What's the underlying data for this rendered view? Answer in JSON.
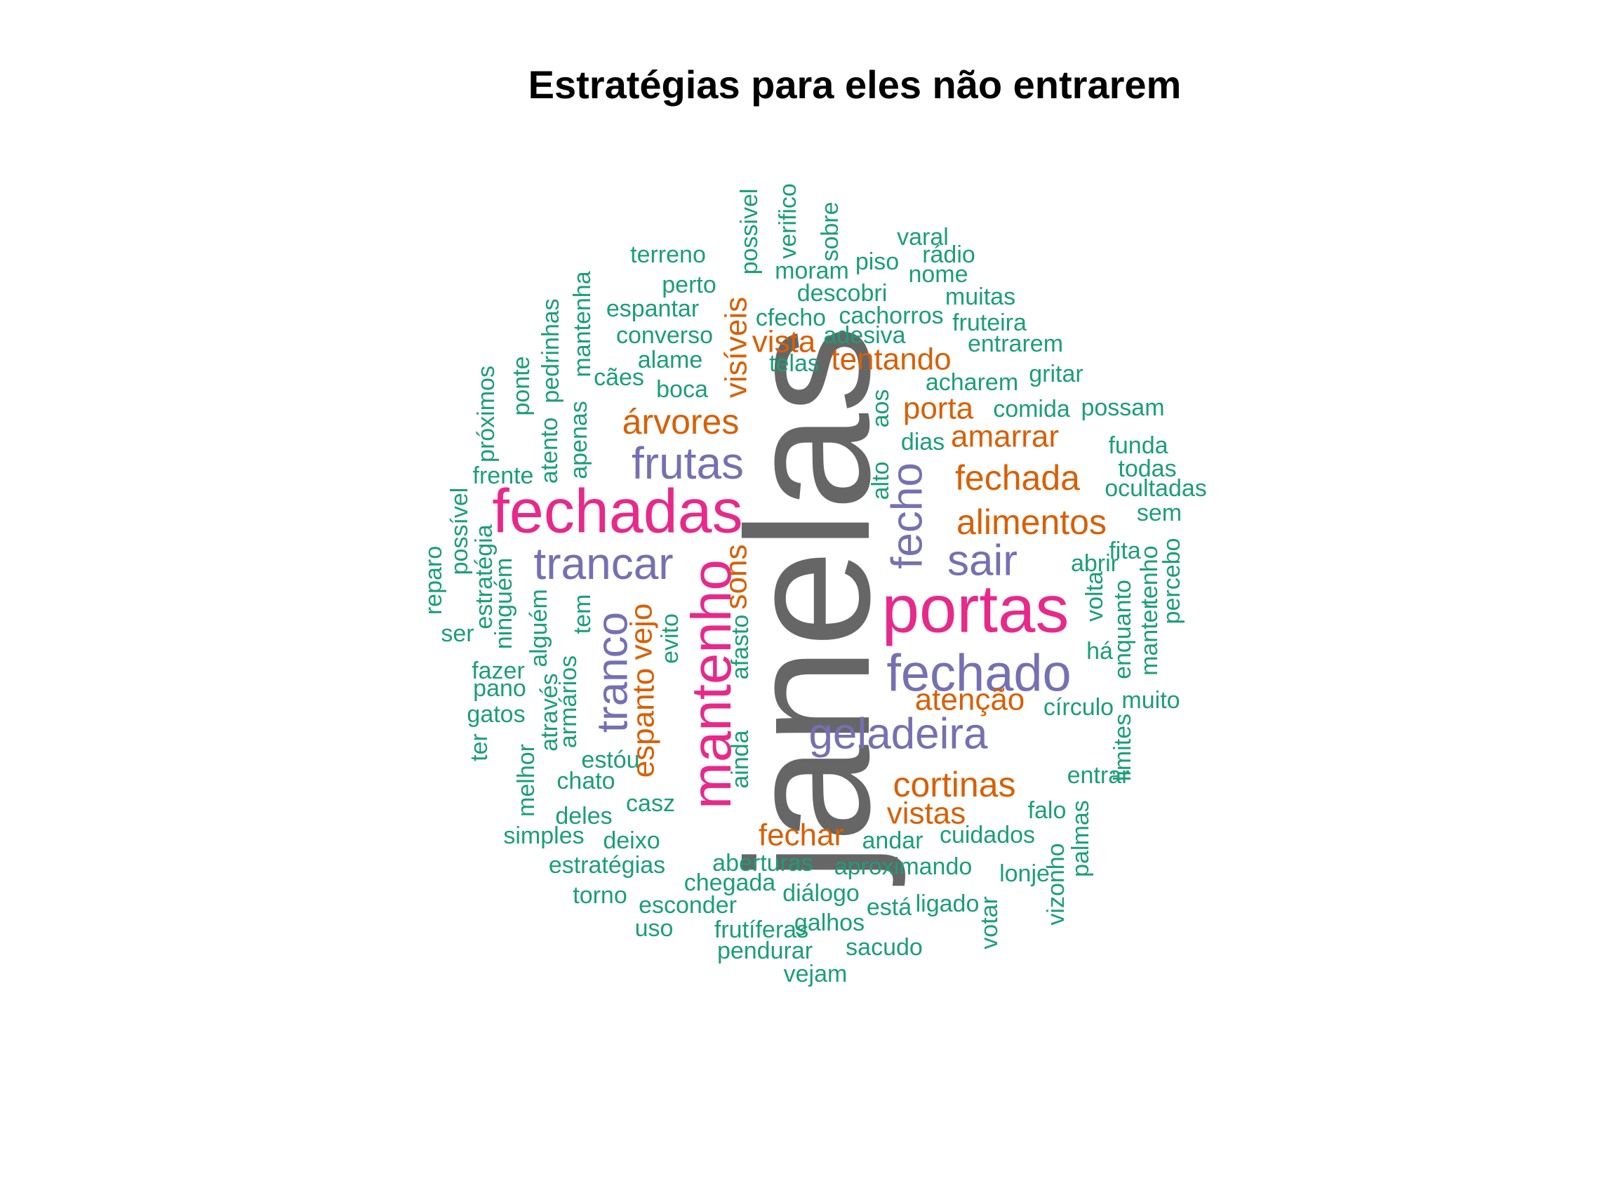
{
  "title": "Estratégias para eles não entrarem",
  "colors": {
    "gray": "#666666",
    "pink": "#e7298a",
    "purple": "#7570b3",
    "orange": "#d95f02",
    "green": "#1b9e77"
  },
  "words": [
    {
      "text": "janelas",
      "color": "gray",
      "size": 250,
      "rotate": true
    },
    {
      "text": "portas",
      "color": "pink",
      "size": 96
    },
    {
      "text": "fechadas",
      "color": "pink",
      "size": 88
    },
    {
      "text": "mantenho",
      "color": "pink",
      "size": 80,
      "rotate": true
    },
    {
      "text": "fechado",
      "color": "purple",
      "size": 74
    },
    {
      "text": "frutas",
      "color": "purple",
      "size": 64
    },
    {
      "text": "trancar",
      "color": "purple",
      "size": 64
    },
    {
      "text": "geladeira",
      "color": "purple",
      "size": 62
    },
    {
      "text": "sair",
      "color": "purple",
      "size": 62
    },
    {
      "text": "fecho",
      "color": "purple",
      "size": 62,
      "rotate": true
    },
    {
      "text": "tranco",
      "color": "purple",
      "size": 62,
      "rotate": true
    },
    {
      "text": "árvores",
      "color": "orange",
      "size": 50
    },
    {
      "text": "fechada",
      "color": "orange",
      "size": 50
    },
    {
      "text": "alimentos",
      "color": "orange",
      "size": 50
    },
    {
      "text": "cortinas",
      "color": "orange",
      "size": 50
    },
    {
      "text": "fechar",
      "color": "orange",
      "size": 44
    },
    {
      "text": "vistas",
      "color": "orange",
      "size": 44
    },
    {
      "text": "porta",
      "color": "orange",
      "size": 44
    },
    {
      "text": "amarrar",
      "color": "orange",
      "size": 44
    },
    {
      "text": "tentando",
      "color": "orange",
      "size": 44
    },
    {
      "text": "vista",
      "color": "orange",
      "size": 44
    },
    {
      "text": "atenção",
      "color": "orange",
      "size": 44
    },
    {
      "text": "visíveis",
      "color": "orange",
      "size": 44,
      "rotate": true
    },
    {
      "text": "sons",
      "color": "orange",
      "size": 44,
      "rotate": true
    },
    {
      "text": "vejo",
      "color": "orange",
      "size": 44,
      "rotate": true
    },
    {
      "text": "espanto",
      "color": "orange",
      "size": 44,
      "rotate": true
    },
    {
      "text": "terreno",
      "color": "green",
      "size": 34
    },
    {
      "text": "perto",
      "color": "green",
      "size": 34
    },
    {
      "text": "espantar",
      "color": "green",
      "size": 34
    },
    {
      "text": "converso",
      "color": "green",
      "size": 34
    },
    {
      "text": "alame",
      "color": "green",
      "size": 34
    },
    {
      "text": "cães",
      "color": "green",
      "size": 34
    },
    {
      "text": "boca",
      "color": "green",
      "size": 34
    },
    {
      "text": "moram",
      "color": "green",
      "size": 34
    },
    {
      "text": "piso",
      "color": "green",
      "size": 34
    },
    {
      "text": "varal",
      "color": "green",
      "size": 34
    },
    {
      "text": "rádio",
      "color": "green",
      "size": 34
    },
    {
      "text": "nome",
      "color": "green",
      "size": 34
    },
    {
      "text": "descobri",
      "color": "green",
      "size": 34
    },
    {
      "text": "muitas",
      "color": "green",
      "size": 34
    },
    {
      "text": "cfecho",
      "color": "green",
      "size": 34
    },
    {
      "text": "cachorros",
      "color": "green",
      "size": 34
    },
    {
      "text": "fruteira",
      "color": "green",
      "size": 34
    },
    {
      "text": "adesiva",
      "color": "green",
      "size": 34
    },
    {
      "text": "entrarem",
      "color": "green",
      "size": 34
    },
    {
      "text": "telas",
      "color": "green",
      "size": 34
    },
    {
      "text": "gritar",
      "color": "green",
      "size": 34
    },
    {
      "text": "acharem",
      "color": "green",
      "size": 34
    },
    {
      "text": "comida",
      "color": "green",
      "size": 34
    },
    {
      "text": "possam",
      "color": "green",
      "size": 34
    },
    {
      "text": "dias",
      "color": "green",
      "size": 34
    },
    {
      "text": "funda",
      "color": "green",
      "size": 34
    },
    {
      "text": "todas",
      "color": "green",
      "size": 34
    },
    {
      "text": "ocultadas",
      "color": "green",
      "size": 34
    },
    {
      "text": "sem",
      "color": "green",
      "size": 34
    },
    {
      "text": "fita",
      "color": "green",
      "size": 34
    },
    {
      "text": "abrir",
      "color": "green",
      "size": 34
    },
    {
      "text": "frente",
      "color": "green",
      "size": 34
    },
    {
      "text": "ser",
      "color": "green",
      "size": 34
    },
    {
      "text": "fazer",
      "color": "green",
      "size": 34
    },
    {
      "text": "pano",
      "color": "green",
      "size": 34
    },
    {
      "text": "gatos",
      "color": "green",
      "size": 34
    },
    {
      "text": "há",
      "color": "green",
      "size": 34
    },
    {
      "text": "muito",
      "color": "green",
      "size": 34
    },
    {
      "text": "círculo",
      "color": "green",
      "size": 34
    },
    {
      "text": "entrar",
      "color": "green",
      "size": 34
    },
    {
      "text": "falo",
      "color": "green",
      "size": 34
    },
    {
      "text": "cuidados",
      "color": "green",
      "size": 34
    },
    {
      "text": "andar",
      "color": "green",
      "size": 34
    },
    {
      "text": "aproximando",
      "color": "green",
      "size": 34
    },
    {
      "text": "lonje",
      "color": "green",
      "size": 34
    },
    {
      "text": "ligado",
      "color": "green",
      "size": 34
    },
    {
      "text": "está",
      "color": "green",
      "size": 34
    },
    {
      "text": "galhos",
      "color": "green",
      "size": 34
    },
    {
      "text": "sacudo",
      "color": "green",
      "size": 34
    },
    {
      "text": "vejam",
      "color": "green",
      "size": 34
    },
    {
      "text": "pendurar",
      "color": "green",
      "size": 34
    },
    {
      "text": "frutíferas",
      "color": "green",
      "size": 34
    },
    {
      "text": "uso",
      "color": "green",
      "size": 34
    },
    {
      "text": "esconder",
      "color": "green",
      "size": 34
    },
    {
      "text": "torno",
      "color": "green",
      "size": 34
    },
    {
      "text": "diálogo",
      "color": "green",
      "size": 34
    },
    {
      "text": "chegada",
      "color": "green",
      "size": 34
    },
    {
      "text": "aberturas",
      "color": "green",
      "size": 34
    },
    {
      "text": "estratégias",
      "color": "green",
      "size": 34
    },
    {
      "text": "deixo",
      "color": "green",
      "size": 34
    },
    {
      "text": "simples",
      "color": "green",
      "size": 34
    },
    {
      "text": "deles",
      "color": "green",
      "size": 34
    },
    {
      "text": "casz",
      "color": "green",
      "size": 34
    },
    {
      "text": "chato",
      "color": "green",
      "size": 34
    },
    {
      "text": "estóu",
      "color": "green",
      "size": 34
    },
    {
      "text": "possivel",
      "color": "green",
      "size": 34,
      "rotate": true
    },
    {
      "text": "verifico",
      "color": "green",
      "size": 34,
      "rotate": true
    },
    {
      "text": "sobre",
      "color": "green",
      "size": 34,
      "rotate": true
    },
    {
      "text": "mantenha",
      "color": "green",
      "size": 34,
      "rotate": true
    },
    {
      "text": "pedrinhas",
      "color": "green",
      "size": 34,
      "rotate": true
    },
    {
      "text": "ponte",
      "color": "green",
      "size": 34,
      "rotate": true
    },
    {
      "text": "próximos",
      "color": "green",
      "size": 34,
      "rotate": true
    },
    {
      "text": "atento",
      "color": "green",
      "size": 34,
      "rotate": true
    },
    {
      "text": "apenas",
      "color": "green",
      "size": 34,
      "rotate": true
    },
    {
      "text": "aos",
      "color": "green",
      "size": 34,
      "rotate": true
    },
    {
      "text": "alto",
      "color": "green",
      "size": 34,
      "rotate": true
    },
    {
      "text": "possível",
      "color": "green",
      "size": 34,
      "rotate": true
    },
    {
      "text": "reparo",
      "color": "green",
      "size": 34,
      "rotate": true
    },
    {
      "text": "estratégia",
      "color": "green",
      "size": 34,
      "rotate": true
    },
    {
      "text": "ninguém",
      "color": "green",
      "size": 34,
      "rotate": true
    },
    {
      "text": "alguém",
      "color": "green",
      "size": 34,
      "rotate": true
    },
    {
      "text": "tem",
      "color": "green",
      "size": 34,
      "rotate": true
    },
    {
      "text": "evito",
      "color": "green",
      "size": 34,
      "rotate": true
    },
    {
      "text": "afasto",
      "color": "green",
      "size": 34,
      "rotate": true
    },
    {
      "text": "através",
      "color": "green",
      "size": 34,
      "rotate": true
    },
    {
      "text": "armários",
      "color": "green",
      "size": 34,
      "rotate": true
    },
    {
      "text": "ter",
      "color": "green",
      "size": 34,
      "rotate": true
    },
    {
      "text": "melhor",
      "color": "green",
      "size": 34,
      "rotate": true
    },
    {
      "text": "ainda",
      "color": "green",
      "size": 34,
      "rotate": true
    },
    {
      "text": "volta",
      "color": "green",
      "size": 34,
      "rotate": true
    },
    {
      "text": "enquanto",
      "color": "green",
      "size": 34,
      "rotate": true
    },
    {
      "text": "manter",
      "color": "green",
      "size": 34,
      "rotate": true
    },
    {
      "text": "tenho",
      "color": "green",
      "size": 34,
      "rotate": true
    },
    {
      "text": "percebo",
      "color": "green",
      "size": 34,
      "rotate": true
    },
    {
      "text": "limites",
      "color": "green",
      "size": 34,
      "rotate": true
    },
    {
      "text": "palmas",
      "color": "green",
      "size": 34,
      "rotate": true
    },
    {
      "text": "vizonho",
      "color": "green",
      "size": 34,
      "rotate": true
    },
    {
      "text": "votar",
      "color": "green",
      "size": 34,
      "rotate": true
    }
  ]
}
